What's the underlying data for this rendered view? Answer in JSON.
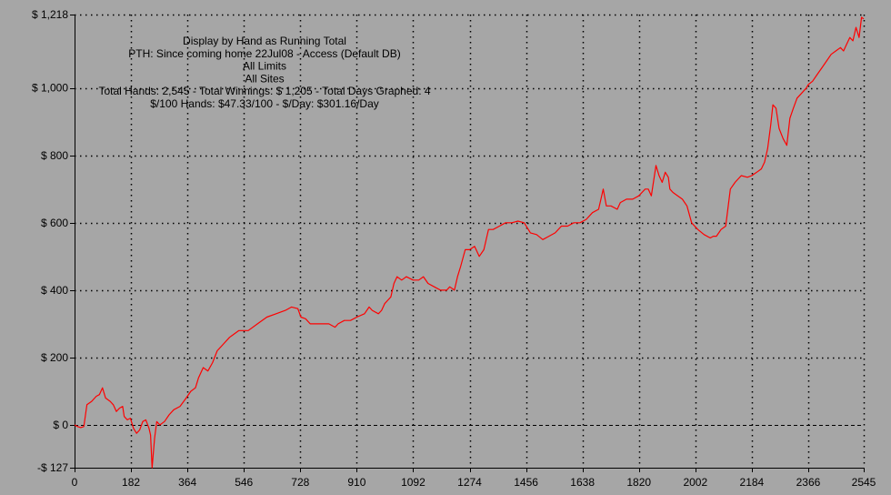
{
  "chart_data": {
    "type": "line",
    "info_lines": [
      "Display by Hand as Running Total",
      "PTH: Since coming home 22Jul08 - Access (Default DB)",
      "All Limits",
      "All Sites",
      "Total Hands: 2,545 - Total Winnings: $ 1,205 - Total Days Graphed: 4",
      "$/100 Hands: $47.33/100 - $/Day: $301.16/Day"
    ],
    "xlim": [
      0,
      2545
    ],
    "ylim": [
      -127,
      1218
    ],
    "x_ticks": [
      0,
      182,
      364,
      546,
      728,
      910,
      1092,
      1274,
      1456,
      1638,
      1820,
      2002,
      2184,
      2366,
      2545
    ],
    "x_tick_labels": [
      "0",
      "182",
      "364",
      "546",
      "728",
      "910",
      "1092",
      "1274",
      "1456",
      "1638",
      "1820",
      "2002",
      "2184",
      "2366",
      "2545"
    ],
    "y_ticks": [
      -127,
      0,
      200,
      400,
      600,
      800,
      1000,
      1218
    ],
    "y_tick_labels": [
      "-$ 127",
      "$ 0",
      "$ 200",
      "$ 400",
      "$ 600",
      "$ 800",
      "$ 1,000",
      "$ 1,218"
    ],
    "grid": true,
    "line_color": "#ff0000",
    "series": [
      {
        "points": [
          [
            0,
            0
          ],
          [
            10,
            -5
          ],
          [
            20,
            -8
          ],
          [
            30,
            -5
          ],
          [
            40,
            60
          ],
          [
            55,
            70
          ],
          [
            70,
            85
          ],
          [
            80,
            90
          ],
          [
            90,
            110
          ],
          [
            100,
            80
          ],
          [
            115,
            70
          ],
          [
            125,
            60
          ],
          [
            135,
            40
          ],
          [
            145,
            50
          ],
          [
            155,
            55
          ],
          [
            160,
            25
          ],
          [
            170,
            15
          ],
          [
            180,
            20
          ],
          [
            190,
            -10
          ],
          [
            200,
            -25
          ],
          [
            210,
            -15
          ],
          [
            220,
            10
          ],
          [
            230,
            15
          ],
          [
            240,
            -10
          ],
          [
            245,
            -30
          ],
          [
            250,
            -127
          ],
          [
            258,
            -40
          ],
          [
            265,
            10
          ],
          [
            275,
            0
          ],
          [
            290,
            10
          ],
          [
            305,
            30
          ],
          [
            320,
            45
          ],
          [
            340,
            55
          ],
          [
            360,
            80
          ],
          [
            375,
            100
          ],
          [
            390,
            110
          ],
          [
            400,
            140
          ],
          [
            415,
            170
          ],
          [
            430,
            160
          ],
          [
            445,
            185
          ],
          [
            460,
            220
          ],
          [
            480,
            240
          ],
          [
            500,
            260
          ],
          [
            515,
            270
          ],
          [
            530,
            280
          ],
          [
            560,
            280
          ],
          [
            590,
            300
          ],
          [
            620,
            320
          ],
          [
            650,
            330
          ],
          [
            680,
            340
          ],
          [
            700,
            350
          ],
          [
            720,
            345
          ],
          [
            730,
            320
          ],
          [
            745,
            315
          ],
          [
            760,
            300
          ],
          [
            790,
            300
          ],
          [
            820,
            300
          ],
          [
            840,
            290
          ],
          [
            850,
            300
          ],
          [
            870,
            310
          ],
          [
            890,
            310
          ],
          [
            910,
            320
          ],
          [
            935,
            330
          ],
          [
            950,
            350
          ],
          [
            960,
            340
          ],
          [
            980,
            330
          ],
          [
            990,
            340
          ],
          [
            1000,
            360
          ],
          [
            1010,
            370
          ],
          [
            1020,
            380
          ],
          [
            1030,
            420
          ],
          [
            1040,
            440
          ],
          [
            1055,
            430
          ],
          [
            1070,
            440
          ],
          [
            1092,
            430
          ],
          [
            1110,
            430
          ],
          [
            1125,
            440
          ],
          [
            1140,
            420
          ],
          [
            1160,
            410
          ],
          [
            1180,
            400
          ],
          [
            1200,
            400
          ],
          [
            1210,
            410
          ],
          [
            1225,
            400
          ],
          [
            1235,
            440
          ],
          [
            1245,
            470
          ],
          [
            1260,
            520
          ],
          [
            1274,
            520
          ],
          [
            1290,
            530
          ],
          [
            1305,
            500
          ],
          [
            1320,
            520
          ],
          [
            1335,
            580
          ],
          [
            1350,
            580
          ],
          [
            1370,
            590
          ],
          [
            1390,
            600
          ],
          [
            1410,
            600
          ],
          [
            1430,
            605
          ],
          [
            1450,
            600
          ],
          [
            1470,
            570
          ],
          [
            1490,
            565
          ],
          [
            1510,
            550
          ],
          [
            1530,
            560
          ],
          [
            1550,
            570
          ],
          [
            1570,
            590
          ],
          [
            1590,
            590
          ],
          [
            1610,
            600
          ],
          [
            1630,
            600
          ],
          [
            1650,
            610
          ],
          [
            1670,
            630
          ],
          [
            1690,
            640
          ],
          [
            1705,
            700
          ],
          [
            1715,
            650
          ],
          [
            1730,
            650
          ],
          [
            1750,
            640
          ],
          [
            1760,
            660
          ],
          [
            1780,
            670
          ],
          [
            1800,
            670
          ],
          [
            1820,
            680
          ],
          [
            1830,
            690
          ],
          [
            1840,
            700
          ],
          [
            1850,
            700
          ],
          [
            1860,
            680
          ],
          [
            1875,
            770
          ],
          [
            1885,
            740
          ],
          [
            1895,
            720
          ],
          [
            1905,
            750
          ],
          [
            1915,
            735
          ],
          [
            1920,
            700
          ],
          [
            1930,
            690
          ],
          [
            1945,
            680
          ],
          [
            1960,
            670
          ],
          [
            1975,
            650
          ],
          [
            1990,
            600
          ],
          [
            2010,
            580
          ],
          [
            2030,
            565
          ],
          [
            2050,
            555
          ],
          [
            2060,
            560
          ],
          [
            2070,
            560
          ],
          [
            2085,
            580
          ],
          [
            2100,
            590
          ],
          [
            2115,
            700
          ],
          [
            2130,
            720
          ],
          [
            2150,
            740
          ],
          [
            2170,
            735
          ],
          [
            2184,
            740
          ],
          [
            2200,
            750
          ],
          [
            2215,
            760
          ],
          [
            2225,
            780
          ],
          [
            2235,
            820
          ],
          [
            2245,
            890
          ],
          [
            2252,
            950
          ],
          [
            2262,
            940
          ],
          [
            2272,
            880
          ],
          [
            2285,
            850
          ],
          [
            2297,
            830
          ],
          [
            2307,
            910
          ],
          [
            2318,
            940
          ],
          [
            2330,
            970
          ],
          [
            2345,
            985
          ],
          [
            2360,
            1000
          ],
          [
            2366,
            1010
          ],
          [
            2380,
            1020
          ],
          [
            2395,
            1040
          ],
          [
            2410,
            1060
          ],
          [
            2425,
            1080
          ],
          [
            2440,
            1100
          ],
          [
            2455,
            1110
          ],
          [
            2470,
            1120
          ],
          [
            2480,
            1110
          ],
          [
            2490,
            1130
          ],
          [
            2500,
            1150
          ],
          [
            2510,
            1140
          ],
          [
            2520,
            1180
          ],
          [
            2530,
            1150
          ],
          [
            2538,
            1210
          ],
          [
            2545,
            1205
          ]
        ]
      }
    ]
  }
}
